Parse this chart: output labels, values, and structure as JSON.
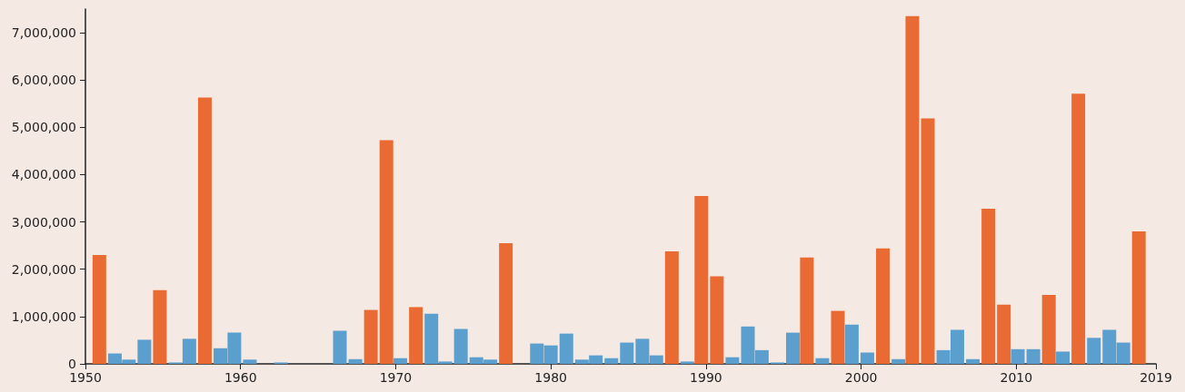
{
  "chart_data": {
    "type": "bar",
    "x": [
      1950.9,
      1951.9,
      1952.8,
      1953.8,
      1954.8,
      1955.8,
      1956.7,
      1957.7,
      1958.7,
      1959.6,
      1960.6,
      1961.6,
      1962.6,
      1963.5,
      1964.5,
      1965.5,
      1966.4,
      1967.4,
      1968.4,
      1969.4,
      1970.3,
      1971.3,
      1972.3,
      1973.2,
      1974.2,
      1975.2,
      1976.1,
      1977.1,
      1978.1,
      1979.1,
      1980.0,
      1981.0,
      1982.0,
      1982.9,
      1983.9,
      1984.9,
      1985.9,
      1986.8,
      1987.8,
      1988.8,
      1989.7,
      1990.7,
      1991.7,
      1992.7,
      1993.6,
      1994.6,
      1995.6,
      1996.5,
      1997.5,
      1998.5,
      1999.4,
      2000.4,
      2001.4,
      2002.4,
      2003.3,
      2004.3,
      2005.3,
      2006.2,
      2007.2,
      2008.2,
      2009.2,
      2010.1,
      2011.1,
      2012.1,
      2013.0,
      2014.0,
      2015.0,
      2016.0,
      2016.9,
      2017.9
    ],
    "values": [
      2300000,
      220000,
      90000,
      510000,
      1560000,
      30000,
      530000,
      5630000,
      330000,
      660000,
      90000,
      null,
      30000,
      null,
      null,
      null,
      700000,
      100000,
      1140000,
      4730000,
      120000,
      1200000,
      1060000,
      50000,
      740000,
      140000,
      90000,
      2550000,
      null,
      430000,
      390000,
      640000,
      90000,
      180000,
      120000,
      450000,
      530000,
      180000,
      2380000,
      50000,
      3550000,
      1850000,
      140000,
      790000,
      290000,
      30000,
      660000,
      2250000,
      120000,
      1120000,
      830000,
      240000,
      2440000,
      100000,
      7350000,
      5190000,
      290000,
      720000,
      100000,
      3280000,
      1250000,
      310000,
      310000,
      1460000,
      260000,
      5710000,
      550000,
      720000,
      450000,
      2800000
    ],
    "colors": [
      "#e96b33",
      "#5b9fcf",
      "#5b9fcf",
      "#5b9fcf",
      "#e96b33",
      "#5b9fcf",
      "#5b9fcf",
      "#e96b33",
      "#5b9fcf",
      "#5b9fcf",
      "#5b9fcf",
      "#5b9fcf",
      "#5b9fcf",
      "#5b9fcf",
      "#5b9fcf",
      "#5b9fcf",
      "#5b9fcf",
      "#5b9fcf",
      "#e96b33",
      "#e96b33",
      "#5b9fcf",
      "#e96b33",
      "#5b9fcf",
      "#5b9fcf",
      "#5b9fcf",
      "#5b9fcf",
      "#5b9fcf",
      "#e96b33",
      "#5b9fcf",
      "#5b9fcf",
      "#5b9fcf",
      "#5b9fcf",
      "#5b9fcf",
      "#5b9fcf",
      "#5b9fcf",
      "#5b9fcf",
      "#5b9fcf",
      "#5b9fcf",
      "#e96b33",
      "#5b9fcf",
      "#e96b33",
      "#e96b33",
      "#5b9fcf",
      "#5b9fcf",
      "#5b9fcf",
      "#5b9fcf",
      "#5b9fcf",
      "#e96b33",
      "#5b9fcf",
      "#e96b33",
      "#5b9fcf",
      "#5b9fcf",
      "#e96b33",
      "#5b9fcf",
      "#e96b33",
      "#e96b33",
      "#5b9fcf",
      "#5b9fcf",
      "#5b9fcf",
      "#e96b33",
      "#e96b33",
      "#5b9fcf",
      "#5b9fcf",
      "#e96b33",
      "#5b9fcf",
      "#e96b33",
      "#5b9fcf",
      "#5b9fcf",
      "#5b9fcf",
      "#e96b33"
    ],
    "xlim": [
      1950,
      2019
    ],
    "xticks": [
      1950,
      1960,
      1970,
      1980,
      1990,
      2000,
      2010,
      2019
    ],
    "ylim": [
      0,
      7500000
    ],
    "yticks": [
      0,
      {
        "value": 1000000,
        "label": "1,000,000"
      },
      {
        "value": 2000000,
        "label": "2,000,000"
      },
      {
        "value": 3000000,
        "label": "3,000,000"
      },
      {
        "value": 4000000,
        "label": "4,000,000"
      },
      {
        "value": 5000000,
        "label": "5,000,000"
      },
      {
        "value": 6000000,
        "label": "6,000,000"
      },
      {
        "value": 7000000,
        "label": "7,000,000"
      }
    ],
    "grid": false
  }
}
